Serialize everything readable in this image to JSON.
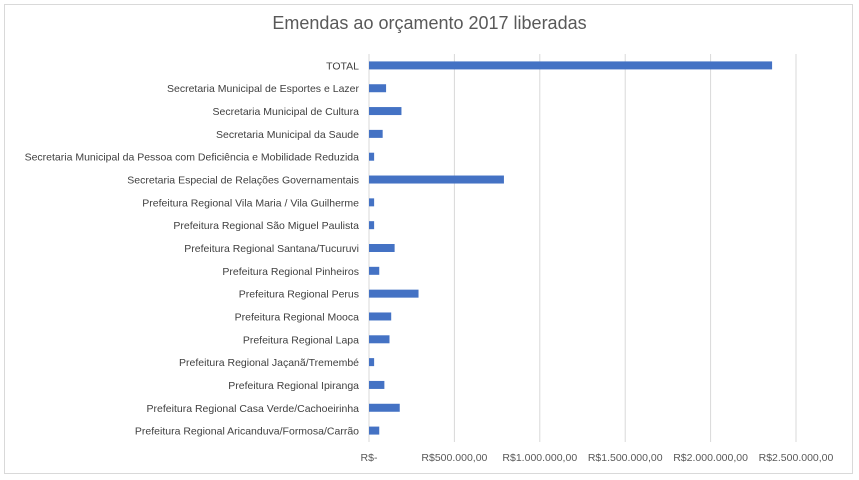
{
  "chart_data": {
    "type": "bar",
    "orientation": "horizontal",
    "title": "Emendas ao orçamento 2017 liberadas",
    "xlabel": "",
    "ylabel": "",
    "xlim": [
      0,
      2500000
    ],
    "grid": true,
    "legend": "none",
    "bar_color": "#4472C4",
    "categories": [
      "TOTAL",
      "Secretaria Municipal de Esportes e Lazer",
      "Secretaria Municipal de Cultura",
      "Secretaria Municipal da Saude",
      "Secretaria Municipal da Pessoa com Deficiência e Mobilidade Reduzida",
      "Secretaria Especial de Relações Governamentais",
      "Prefeitura Regional Vila Maria / Vila Guilherme",
      "Prefeitura Regional São Miguel Paulista",
      "Prefeitura Regional Santana/Tucuruvi",
      "Prefeitura Regional Pinheiros",
      "Prefeitura Regional Perus",
      "Prefeitura Regional Mooca",
      "Prefeitura Regional Lapa",
      "Prefeitura Regional Jaçanã/Tremembé",
      "Prefeitura Regional Ipiranga",
      "Prefeitura Regional Casa Verde/Cachoeirinha",
      "Prefeitura Regional Aricanduva/Formosa/Carrão"
    ],
    "values": [
      2360000,
      100000,
      190000,
      80000,
      30000,
      790000,
      30000,
      30000,
      150000,
      60000,
      290000,
      130000,
      120000,
      30000,
      90000,
      180000,
      60000
    ],
    "tick_values": [
      0,
      500000,
      1000000,
      1500000,
      2000000,
      2500000
    ],
    "tick_labels": [
      "R$-",
      "R$500.000,00",
      "R$1.000.000,00",
      "R$1.500.000,00",
      "R$2.000.000,00",
      "R$2.500.000,00"
    ]
  }
}
